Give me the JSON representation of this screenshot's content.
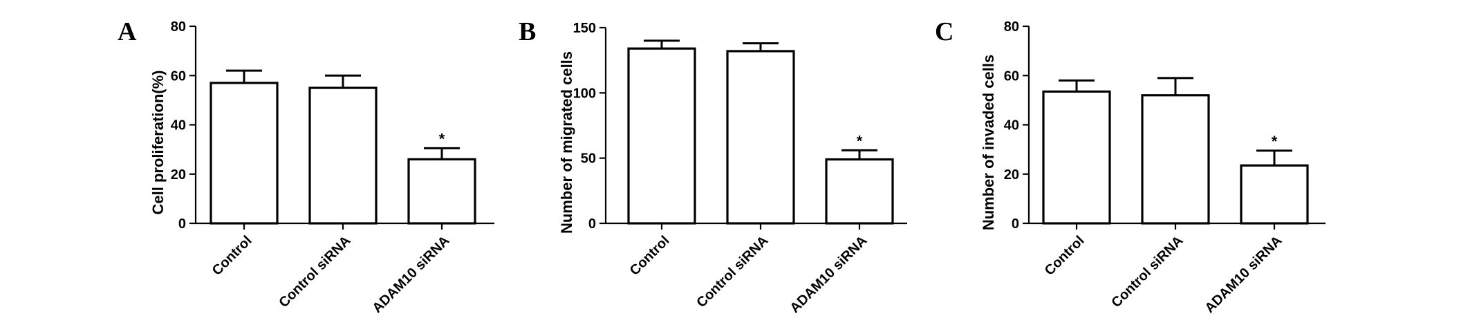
{
  "chart_data": [
    {
      "type": "bar",
      "panel": "A",
      "ylabel": "Cell proliferation(%)",
      "ylim": [
        0,
        80
      ],
      "yticks": [
        0,
        20,
        40,
        60,
        80
      ],
      "categories": [
        "Control",
        "Control siRNA",
        "ADAM10 siRNA"
      ],
      "values": [
        57,
        55,
        26
      ],
      "errors": [
        5,
        5,
        4.5
      ],
      "annotations": [
        "",
        "",
        "*"
      ]
    },
    {
      "type": "bar",
      "panel": "B",
      "ylabel": "Number of  migrated cells",
      "ylim": [
        0,
        150
      ],
      "yticks": [
        0,
        50,
        100,
        150
      ],
      "categories": [
        "Control",
        "Control siRNA",
        "ADAM10 siRNA"
      ],
      "values": [
        134,
        132,
        49
      ],
      "errors": [
        6,
        6,
        7
      ],
      "annotations": [
        "",
        "",
        "*"
      ]
    },
    {
      "type": "bar",
      "panel": "C",
      "ylabel": "Number of invaded cells",
      "ylim": [
        0,
        80
      ],
      "yticks": [
        0,
        20,
        40,
        60,
        80
      ],
      "categories": [
        "Control",
        "Control siRNA",
        "ADAM10 siRNA"
      ],
      "values": [
        53.5,
        52,
        23.5
      ],
      "errors": [
        4.5,
        7,
        6
      ],
      "annotations": [
        "",
        "",
        "*"
      ]
    }
  ]
}
